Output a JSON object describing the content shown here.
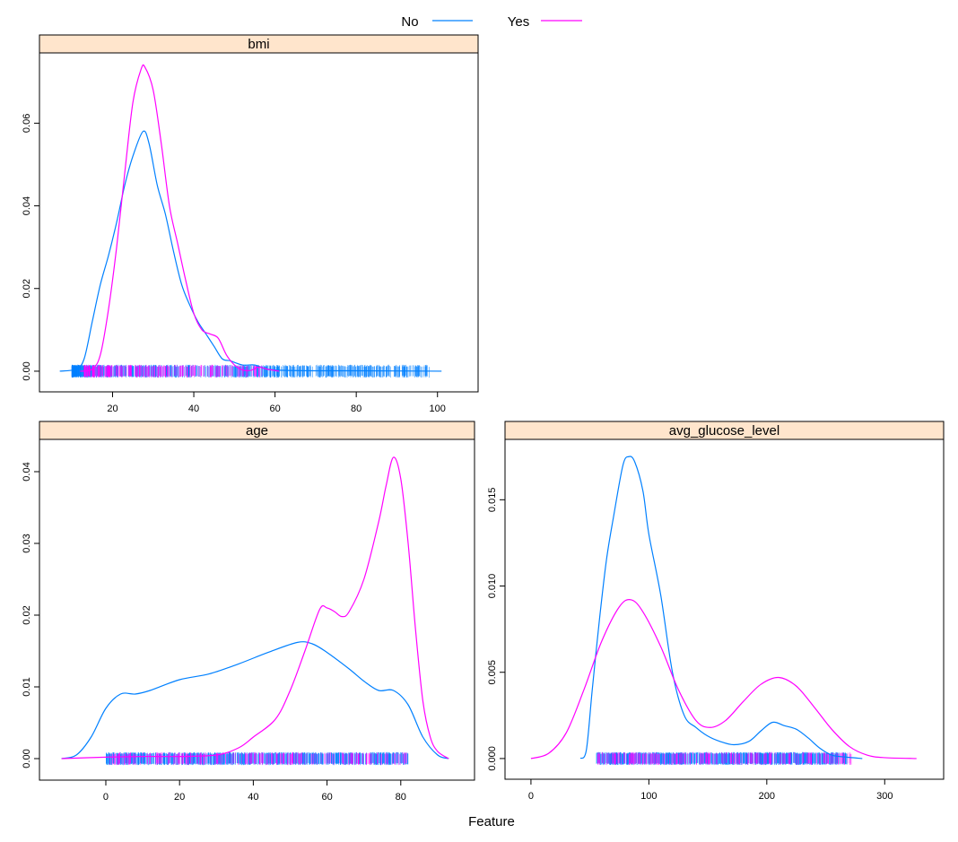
{
  "legend": {
    "placement": "top",
    "entries": [
      {
        "label": "No",
        "color": "#0080ff"
      },
      {
        "label": "Yes",
        "color": "#ff00ff"
      }
    ]
  },
  "xlabel": "Feature",
  "strip_color": "#ffe5cc",
  "chart_data": [
    {
      "type": "line",
      "title": "bmi",
      "xticks": [
        20,
        40,
        60,
        80,
        100
      ],
      "yticks": [
        "0.00",
        "0.02",
        "0.04",
        "0.06"
      ],
      "xlim": [
        2,
        110
      ],
      "ylim": [
        -0.005,
        0.077
      ],
      "rug": {
        "No": [
          10,
          98
        ],
        "Yes": [
          13,
          57
        ]
      },
      "series": [
        {
          "name": "No",
          "x": [
            7,
            11,
            13,
            15,
            17,
            19,
            21,
            23,
            25,
            27.5,
            29,
            31,
            33,
            35,
            37,
            39,
            41,
            43,
            45,
            47,
            49,
            52,
            55,
            58,
            62,
            70,
            80,
            101
          ],
          "y": [
            0,
            0.0005,
            0.003,
            0.012,
            0.021,
            0.028,
            0.036,
            0.045,
            0.052,
            0.058,
            0.055,
            0.045,
            0.038,
            0.029,
            0.021,
            0.016,
            0.012,
            0.009,
            0.006,
            0.003,
            0.0025,
            0.0015,
            0.0015,
            0.0005,
            0.0002,
            0.0001,
            0.0001,
            0
          ]
        },
        {
          "name": "Yes",
          "x": [
            12,
            15,
            17,
            19,
            21,
            23,
            25,
            27,
            28,
            30,
            32,
            34,
            36,
            38,
            40,
            42,
            44,
            46,
            48,
            50,
            52,
            54,
            56,
            58,
            61
          ],
          "y": [
            0,
            0.0005,
            0.004,
            0.015,
            0.03,
            0.048,
            0.065,
            0.073,
            0.0735,
            0.068,
            0.055,
            0.04,
            0.031,
            0.022,
            0.014,
            0.01,
            0.009,
            0.008,
            0.004,
            0.0015,
            0.0003,
            0.0002,
            0.001,
            0.0005,
            0
          ]
        }
      ]
    },
    {
      "type": "line",
      "title": "age",
      "xticks": [
        0,
        20,
        40,
        60,
        80
      ],
      "yticks": [
        "0.00",
        "0.01",
        "0.02",
        "0.03",
        "0.04"
      ],
      "xlim": [
        -18,
        100
      ],
      "ylim": [
        -0.003,
        0.0445
      ],
      "rug": {
        "No": [
          0,
          82
        ],
        "Yes": [
          1,
          82
        ]
      },
      "series": [
        {
          "name": "No",
          "x": [
            -12,
            -8,
            -4,
            0,
            4,
            8,
            12,
            20,
            28,
            36,
            44,
            52,
            56,
            60,
            66,
            70,
            74,
            78,
            82,
            86,
            90,
            93
          ],
          "y": [
            0,
            0.0005,
            0.003,
            0.007,
            0.009,
            0.009,
            0.0095,
            0.011,
            0.0118,
            0.0132,
            0.0148,
            0.0162,
            0.016,
            0.0148,
            0.0125,
            0.0108,
            0.0095,
            0.0095,
            0.0075,
            0.003,
            0.0005,
            0
          ]
        },
        {
          "name": "Yes",
          "x": [
            -12,
            0,
            10,
            20,
            30,
            36,
            40,
            46,
            50,
            54,
            58,
            60,
            62,
            64,
            66,
            70,
            74,
            76,
            78,
            80,
            82,
            84,
            86,
            88,
            90,
            93
          ],
          "y": [
            0,
            0.0002,
            0.0003,
            0.0003,
            0.0005,
            0.0015,
            0.003,
            0.0055,
            0.0095,
            0.015,
            0.0208,
            0.021,
            0.0205,
            0.0198,
            0.0205,
            0.025,
            0.033,
            0.038,
            0.042,
            0.039,
            0.03,
            0.018,
            0.008,
            0.003,
            0.001,
            0
          ]
        }
      ]
    },
    {
      "type": "line",
      "title": "avg_glucose_level",
      "xticks": [
        0,
        100,
        200,
        300
      ],
      "yticks": [
        "0.000",
        "0.005",
        "0.010",
        "0.015"
      ],
      "xlim": [
        -22,
        350
      ],
      "ylim": [
        -0.0012,
        0.0185
      ],
      "rug": {
        "No": [
          55,
          268
        ],
        "Yes": [
          56,
          272
        ]
      },
      "series": [
        {
          "name": "No",
          "x": [
            42,
            47,
            52,
            58,
            64,
            70,
            78,
            83,
            88,
            95,
            100,
            110,
            120,
            130,
            140,
            150,
            160,
            172,
            185,
            195,
            205,
            215,
            225,
            235,
            245,
            255,
            265,
            281
          ],
          "y": [
            0,
            0.0005,
            0.004,
            0.008,
            0.0115,
            0.014,
            0.017,
            0.0175,
            0.0172,
            0.0155,
            0.013,
            0.0095,
            0.005,
            0.0025,
            0.0018,
            0.0013,
            0.001,
            0.0008,
            0.001,
            0.0016,
            0.0021,
            0.0019,
            0.0017,
            0.0012,
            0.0006,
            0.0002,
            0.0001,
            0
          ]
        },
        {
          "name": "Yes",
          "x": [
            0,
            15,
            30,
            45,
            60,
            75,
            85,
            95,
            110,
            125,
            140,
            152,
            165,
            180,
            195,
            210,
            225,
            240,
            255,
            270,
            285,
            300,
            327
          ],
          "y": [
            0,
            0.0003,
            0.0015,
            0.004,
            0.0068,
            0.0088,
            0.0092,
            0.0085,
            0.0065,
            0.004,
            0.0022,
            0.0018,
            0.0022,
            0.0033,
            0.0043,
            0.0047,
            0.0042,
            0.003,
            0.0017,
            0.0007,
            0.0002,
            5e-05,
            0
          ]
        }
      ]
    }
  ]
}
